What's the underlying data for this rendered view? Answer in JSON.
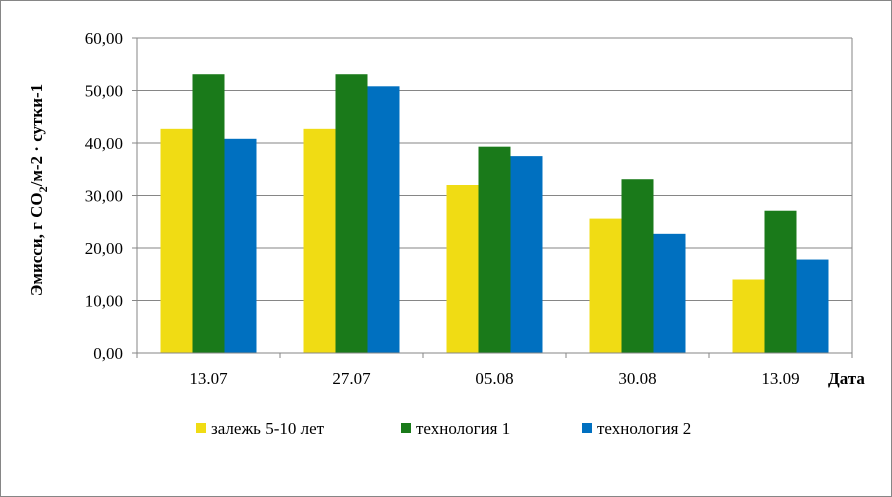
{
  "chart_data": {
    "type": "bar",
    "categories": [
      "13.07",
      "27.07",
      "05.08",
      "30.08",
      "13.09"
    ],
    "series": [
      {
        "name": "залежь 5-10 лет",
        "color": "#F0DC14",
        "values": [
          42.7,
          42.7,
          32.0,
          25.6,
          14.0
        ]
      },
      {
        "name": "технология 1",
        "color": "#1A7A1A",
        "values": [
          53.1,
          53.1,
          39.3,
          33.1,
          27.1
        ]
      },
      {
        "name": "технология 2",
        "color": "#0070C0",
        "values": [
          40.8,
          50.8,
          37.5,
          22.7,
          17.8
        ]
      }
    ],
    "yticks": [
      "0,00",
      "10,00",
      "20,00",
      "30,00",
      "40,00",
      "50,00",
      "60,00"
    ],
    "ylim": [
      0,
      60
    ],
    "ylabel": {
      "pre": "Эмисси, г CO",
      "sub": "2",
      "post": "/м-2 · сутки-1"
    },
    "xlabel": "Дата",
    "grid": true,
    "legend_position": "bottom"
  }
}
